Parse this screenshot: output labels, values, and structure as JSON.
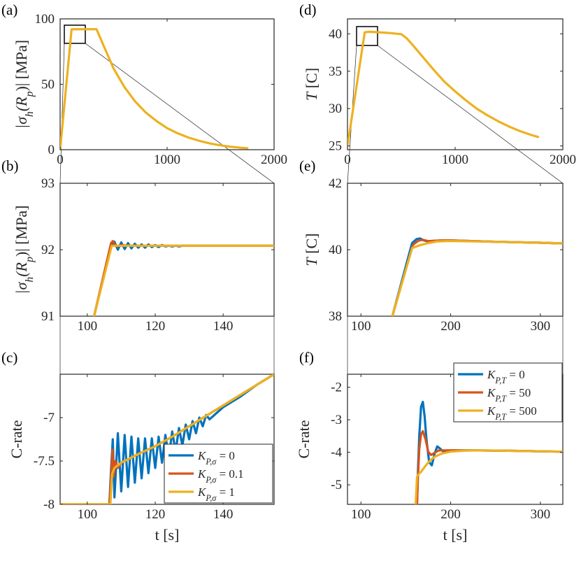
{
  "colors": {
    "blue": "#0072BD",
    "orange": "#D95319",
    "yellow": "#EDB120",
    "axis": "#262626"
  },
  "chart_data": [
    {
      "id": "a",
      "panel_label": "(a)",
      "type": "line",
      "xlim": [
        0,
        2000
      ],
      "ylim": [
        0,
        100
      ],
      "xticks": [
        0,
        1000,
        2000
      ],
      "xtick_labels": [
        "0",
        "1000",
        "2000"
      ],
      "yticks": [
        0,
        50,
        100
      ],
      "ytick_labels": [
        "0",
        "50",
        "100"
      ],
      "xlabel": "",
      "ylabel": "|σh(Rp)| [MPa]",
      "ylabel_parts": [
        "|σ",
        "h",
        "(R",
        "p",
        ")|",
        " [MPa]"
      ],
      "series": [
        {
          "name": "Kσ=1",
          "color": "#EDB120",
          "x": [
            0,
            107,
            150,
            340,
            420,
            500,
            600,
            700,
            800,
            900,
            1000,
            1100,
            1200,
            1300,
            1400,
            1500,
            1600,
            1700,
            1750
          ],
          "y": [
            0,
            92,
            92.1,
            92.1,
            77,
            62,
            48,
            37,
            28.5,
            22,
            16.5,
            12.5,
            9.3,
            6.8,
            4.8,
            3.3,
            2.2,
            1.4,
            1.1
          ]
        }
      ]
    },
    {
      "id": "b",
      "panel_label": "(b)",
      "type": "line",
      "xlim": [
        92,
        155
      ],
      "ylim": [
        91,
        93
      ],
      "xticks": [
        100,
        120,
        140
      ],
      "xtick_labels": [
        "100",
        "120",
        "140"
      ],
      "yticks": [
        91,
        92,
        93
      ],
      "ytick_labels": [
        "91",
        "92",
        "93"
      ],
      "xlabel": "",
      "ylabel": "|σh(Rp)| [MPa]",
      "ylabel_parts": [
        "|σ",
        "h",
        "(R",
        "p",
        ")|",
        " [MPa]"
      ],
      "series": [
        {
          "name": "Kσ=0",
          "color": "#0072BD",
          "x": [
            102,
            107,
            108,
            109,
            110,
            111,
            112,
            113,
            114,
            115,
            116,
            117,
            118,
            119,
            120,
            121,
            122,
            123,
            124,
            125,
            126,
            127,
            128,
            130,
            155
          ],
          "y": [
            91,
            92.05,
            92.12,
            92.0,
            92.11,
            92.01,
            92.1,
            92.02,
            92.09,
            92.03,
            92.08,
            92.03,
            92.08,
            92.04,
            92.07,
            92.04,
            92.07,
            92.05,
            92.06,
            92.05,
            92.06,
            92.05,
            92.06,
            92.06,
            92.06
          ]
        },
        {
          "name": "Kσ=0.1",
          "color": "#D95319",
          "x": [
            102,
            107,
            107.5,
            108.5,
            110,
            112,
            155
          ],
          "y": [
            91,
            92.1,
            92.13,
            92.05,
            92.07,
            92.06,
            92.06
          ]
        },
        {
          "name": "Kσ=1",
          "color": "#EDB120",
          "x": [
            102,
            107.2,
            155
          ],
          "y": [
            91,
            92.06,
            92.06
          ]
        }
      ]
    },
    {
      "id": "c",
      "panel_label": "(c)",
      "type": "line",
      "xlim": [
        92,
        155
      ],
      "ylim": [
        -8,
        -6.5
      ],
      "xticks": [
        100,
        120,
        140
      ],
      "xtick_labels": [
        "100",
        "120",
        "140"
      ],
      "yticks": [
        -8,
        -7.5,
        -7
      ],
      "ytick_labels": [
        "-8",
        "-7.5",
        "-7"
      ],
      "xlabel": "t [s]",
      "ylabel": "C-rate",
      "legend": {
        "location": "bottom-right",
        "entries": [
          "KP,σ = 0",
          "KP,σ = 0.1",
          "KP,σ = 1"
        ],
        "entry_parts": [
          [
            "K",
            "P,σ",
            " = 0"
          ],
          [
            "K",
            "P,σ",
            " = 0.1"
          ],
          [
            "K",
            "P,σ",
            " = 1"
          ]
        ]
      },
      "series": [
        {
          "name": "KP,σ = 0",
          "color": "#0072BD",
          "x": [
            92,
            106.5,
            107,
            107.5,
            108,
            109,
            110,
            111,
            112,
            113,
            114,
            115,
            116,
            117,
            118,
            119,
            120,
            121,
            122,
            123,
            124,
            125,
            126,
            127,
            128,
            129,
            130,
            131,
            132,
            133,
            134,
            135,
            136,
            140,
            145,
            150,
            155
          ],
          "y": [
            -8,
            -8,
            -7.6,
            -7.25,
            -7.92,
            -7.18,
            -7.85,
            -7.2,
            -7.8,
            -7.22,
            -7.75,
            -7.24,
            -7.7,
            -7.24,
            -7.64,
            -7.24,
            -7.58,
            -7.22,
            -7.52,
            -7.2,
            -7.46,
            -7.16,
            -7.39,
            -7.12,
            -7.32,
            -7.08,
            -7.25,
            -7.04,
            -7.18,
            -7.0,
            -7.1,
            -6.97,
            -7.02,
            -6.88,
            -6.76,
            -6.62,
            -6.5
          ]
        },
        {
          "name": "KP,σ = 0.1",
          "color": "#D95319",
          "x": [
            92,
            106.5,
            107,
            107.4,
            107.8,
            108.3,
            109,
            110,
            112,
            115,
            120,
            125,
            130,
            135,
            140,
            145,
            150,
            155
          ],
          "y": [
            -8,
            -8,
            -7.7,
            -7.37,
            -7.68,
            -7.5,
            -7.58,
            -7.52,
            -7.48,
            -7.42,
            -7.33,
            -7.22,
            -7.1,
            -6.98,
            -6.86,
            -6.74,
            -6.62,
            -6.5
          ]
        },
        {
          "name": "KP,σ = 1",
          "color": "#EDB120",
          "x": [
            92,
            106.8,
            107.3,
            108,
            109,
            110,
            112,
            115,
            120,
            125,
            130,
            135,
            140,
            145,
            150,
            155
          ],
          "y": [
            -8,
            -8,
            -7.65,
            -7.58,
            -7.55,
            -7.52,
            -7.48,
            -7.42,
            -7.33,
            -7.22,
            -7.1,
            -6.98,
            -6.86,
            -6.74,
            -6.62,
            -6.5
          ]
        }
      ]
    },
    {
      "id": "d",
      "panel_label": "(d)",
      "type": "line",
      "xlim": [
        0,
        2000
      ],
      "ylim": [
        24.5,
        42
      ],
      "xticks": [
        0,
        1000,
        2000
      ],
      "xtick_labels": [
        "0",
        "1000",
        "2000"
      ],
      "yticks": [
        25,
        30,
        35,
        40
      ],
      "ytick_labels": [
        "25",
        "30",
        "35",
        "40"
      ],
      "xlabel": "",
      "ylabel": "T [C]",
      "ylabel_parts": [
        "T",
        " [C]"
      ],
      "series": [
        {
          "name": "KP,T=500",
          "color": "#EDB120",
          "x": [
            0,
            160,
            200,
            300,
            400,
            500,
            550,
            600,
            700,
            800,
            900,
            1000,
            1100,
            1200,
            1300,
            1400,
            1500,
            1600,
            1700,
            1770
          ],
          "y": [
            25,
            40.2,
            40.28,
            40.2,
            40.1,
            39.95,
            39.4,
            38.6,
            36.9,
            35.2,
            33.6,
            32.3,
            31.1,
            30.0,
            29.1,
            28.3,
            27.6,
            27.0,
            26.5,
            26.2
          ]
        }
      ]
    },
    {
      "id": "e",
      "panel_label": "(e)",
      "type": "line",
      "xlim": [
        85,
        325
      ],
      "ylim": [
        38,
        42
      ],
      "xticks": [
        100,
        200,
        300
      ],
      "xtick_labels": [
        "100",
        "200",
        "300"
      ],
      "yticks": [
        38,
        40,
        42
      ],
      "ytick_labels": [
        "38",
        "40",
        "42"
      ],
      "xlabel": "",
      "ylabel": "T [C]",
      "ylabel_parts": [
        "T",
        " [C]"
      ],
      "series": [
        {
          "name": "KP,T=0",
          "color": "#0072BD",
          "x": [
            135,
            157,
            162,
            166,
            170,
            175,
            182,
            190,
            200,
            250,
            300,
            325
          ],
          "y": [
            38,
            40.2,
            40.32,
            40.34,
            40.28,
            40.25,
            40.27,
            40.28,
            40.28,
            40.24,
            40.21,
            40.19
          ]
        },
        {
          "name": "KP,T=50",
          "color": "#D95319",
          "x": [
            135,
            158,
            164,
            169,
            175,
            182,
            190,
            200,
            250,
            300,
            325
          ],
          "y": [
            38,
            40.15,
            40.27,
            40.3,
            40.26,
            40.27,
            40.28,
            40.28,
            40.24,
            40.21,
            40.19
          ]
        },
        {
          "name": "KP,T=500",
          "color": "#EDB120",
          "x": [
            135,
            157,
            165,
            175,
            185,
            195,
            205,
            250,
            300,
            325
          ],
          "y": [
            38,
            40.05,
            40.13,
            40.2,
            40.25,
            40.26,
            40.26,
            40.24,
            40.21,
            40.19
          ]
        }
      ]
    },
    {
      "id": "f",
      "panel_label": "(f)",
      "type": "line",
      "xlim": [
        85,
        325
      ],
      "ylim": [
        -5.6,
        -1.6
      ],
      "xticks": [
        100,
        200,
        300
      ],
      "xtick_labels": [
        "100",
        "200",
        "300"
      ],
      "yticks": [
        -5,
        -4,
        -3,
        -2
      ],
      "ytick_labels": [
        "-5",
        "-4",
        "-3",
        "-2"
      ],
      "xlabel": "t [s]",
      "ylabel": "C-rate",
      "legend": {
        "location": "top-right",
        "entries": [
          "KP,T = 0",
          "KP,T = 50",
          "KP,T = 500"
        ],
        "entry_parts": [
          [
            "K",
            "P,T",
            " = 0"
          ],
          [
            "K",
            "P,T",
            " = 50"
          ],
          [
            "K",
            "P,T",
            " = 500"
          ]
        ]
      },
      "series": [
        {
          "name": "KP,T = 0",
          "color": "#0072BD",
          "x": [
            162.5,
            163.5,
            165,
            167,
            169,
            171,
            173,
            176,
            179,
            182,
            185,
            188,
            192,
            196,
            200,
            220,
            260,
            300,
            325
          ],
          "y": [
            -5.6,
            -4.6,
            -3.5,
            -2.6,
            -2.45,
            -2.9,
            -3.6,
            -4.3,
            -4.4,
            -4.05,
            -3.82,
            -3.88,
            -3.98,
            -3.95,
            -3.94,
            -3.94,
            -3.95,
            -3.97,
            -3.98
          ]
        },
        {
          "name": "KP,T = 50",
          "color": "#D95319",
          "x": [
            162.5,
            163.5,
            165,
            167,
            169,
            172,
            175,
            178,
            182,
            186,
            190,
            195,
            200,
            220,
            260,
            300,
            325
          ],
          "y": [
            -5.6,
            -4.8,
            -3.9,
            -3.45,
            -3.35,
            -3.6,
            -3.98,
            -4.08,
            -4.02,
            -3.95,
            -3.94,
            -3.94,
            -3.94,
            -3.94,
            -3.95,
            -3.97,
            -3.98
          ]
        },
        {
          "name": "KP,T = 500",
          "color": "#EDB120",
          "x": [
            161,
            162.5,
            164,
            167,
            171,
            176,
            182,
            190,
            200,
            215,
            230,
            260,
            300,
            325
          ],
          "y": [
            -5.6,
            -4.75,
            -4.68,
            -4.6,
            -4.45,
            -4.28,
            -4.14,
            -4.04,
            -3.98,
            -3.95,
            -3.94,
            -3.95,
            -3.97,
            -3.98
          ]
        }
      ]
    }
  ]
}
